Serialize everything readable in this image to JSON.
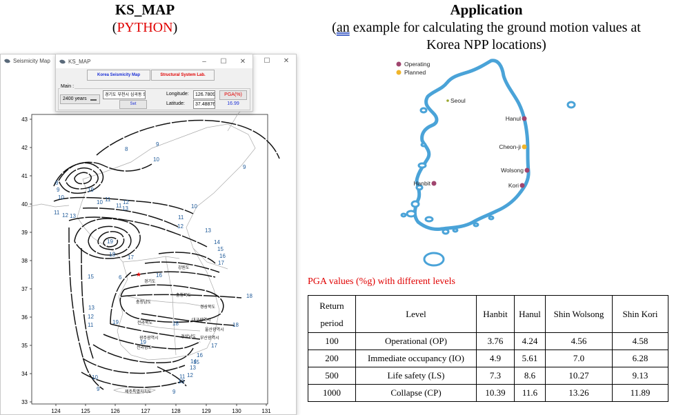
{
  "left": {
    "title": "KS_MAP",
    "subtitle_open": "(",
    "subtitle_lang": "PYTHON",
    "subtitle_close": ")"
  },
  "right": {
    "title": "Application",
    "subtitle_open": "(",
    "subtitle_an": "an",
    "subtitle_rest": " example for calculating the ground motion values at",
    "subtitle_line2": "Korea NPP locations)"
  },
  "seismicity_window": {
    "title": "Seismicity Map",
    "min": "–",
    "max": "☐",
    "close": "✕"
  },
  "ksmap_window": {
    "title": "KS_MAP",
    "min": "–",
    "max": "☐",
    "close": "✕",
    "tab_seismicity": "Korea Seismicity Map",
    "tab_structural": "Structural System Lab.",
    "main_label": "Main :",
    "period_value": "2400 years",
    "address_value": "경기도 부천시 심곡동 552",
    "longitude_label": "Longitude:",
    "longitude_value": "126.7809",
    "latitude_label": "Latitude:",
    "latitude_value": "37.48876",
    "pga_button": "PGA(%)",
    "pga_value": "16.99",
    "set_button": "Set"
  },
  "contour_map": {
    "y_ticks": [
      "43",
      "42",
      "41",
      "40",
      "39",
      "38",
      "37",
      "36",
      "35",
      "34",
      "33"
    ],
    "x_ticks": [
      "124",
      "125",
      "126",
      "127",
      "128",
      "129",
      "130",
      "131"
    ],
    "contour_labels": [
      {
        "text": "8"
      },
      {
        "text": "9"
      },
      {
        "text": "10"
      },
      {
        "text": "9"
      },
      {
        "text": "8"
      },
      {
        "text": "9"
      },
      {
        "text": "10"
      },
      {
        "text": "11"
      },
      {
        "text": "12"
      },
      {
        "text": "13"
      },
      {
        "text": "19"
      },
      {
        "text": "11"
      },
      {
        "text": "10"
      },
      {
        "text": "11"
      },
      {
        "text": "12"
      },
      {
        "text": "13"
      },
      {
        "text": "10"
      },
      {
        "text": "11"
      },
      {
        "text": "12"
      },
      {
        "text": "13"
      },
      {
        "text": "19"
      },
      {
        "text": "18"
      },
      {
        "text": "17"
      },
      {
        "text": "14"
      },
      {
        "text": "15"
      },
      {
        "text": "16"
      },
      {
        "text": "17"
      },
      {
        "text": "15"
      },
      {
        "text": "6"
      },
      {
        "text": "16"
      },
      {
        "text": "18"
      },
      {
        "text": "13"
      },
      {
        "text": "12"
      },
      {
        "text": "11"
      },
      {
        "text": "19"
      },
      {
        "text": "18"
      },
      {
        "text": "19"
      },
      {
        "text": "18"
      },
      {
        "text": "17"
      },
      {
        "text": "16"
      },
      {
        "text": "15"
      },
      {
        "text": "14"
      },
      {
        "text": "13"
      },
      {
        "text": "12"
      },
      {
        "text": "11"
      },
      {
        "text": "10"
      },
      {
        "text": "9"
      },
      {
        "text": "10"
      },
      {
        "text": "9"
      }
    ],
    "place_labels": [
      "강원도",
      "경기도",
      "충청북도",
      "충청남도",
      "경상북도",
      "대구광역시",
      "전라북도",
      "광주광역시",
      "전라남도",
      "경상남도",
      "울산광역시",
      "부산광역시",
      "제주특별자치도"
    ]
  },
  "npp_map": {
    "legend": [
      {
        "label": "Operating",
        "color": "#a0456e"
      },
      {
        "label": "Planned",
        "color": "#f0b52a"
      }
    ],
    "sites": [
      {
        "name": "Seoul",
        "type": "city"
      },
      {
        "name": "Hanul",
        "type": "operating"
      },
      {
        "name": "Cheon-ji",
        "type": "planned"
      },
      {
        "name": "Wolsong",
        "type": "operating"
      },
      {
        "name": "Kori",
        "type": "operating"
      },
      {
        "name": "Hanbit",
        "type": "operating"
      }
    ],
    "land_color": "#ffffff",
    "coast_color": "#4aa3d8"
  },
  "pga_caption": "PGA values (%g) with different levels",
  "table": {
    "headers": [
      "Return period",
      "Level",
      "Hanbit",
      "Hanul",
      "Shin Wolsong",
      "Shin Kori"
    ],
    "rows": [
      [
        "100",
        "Operational (OP)",
        "3.76",
        "4.24",
        "4.56",
        "4.58"
      ],
      [
        "200",
        "Immediate occupancy (IO)",
        "4.9",
        "5.61",
        "7.0",
        "6.28"
      ],
      [
        "500",
        "Life safety (LS)",
        "7.3",
        "8.6",
        "10.27",
        "9.13"
      ],
      [
        "1000",
        "Collapse (CP)",
        "10.39",
        "11.6",
        "13.26",
        "11.89"
      ]
    ]
  }
}
